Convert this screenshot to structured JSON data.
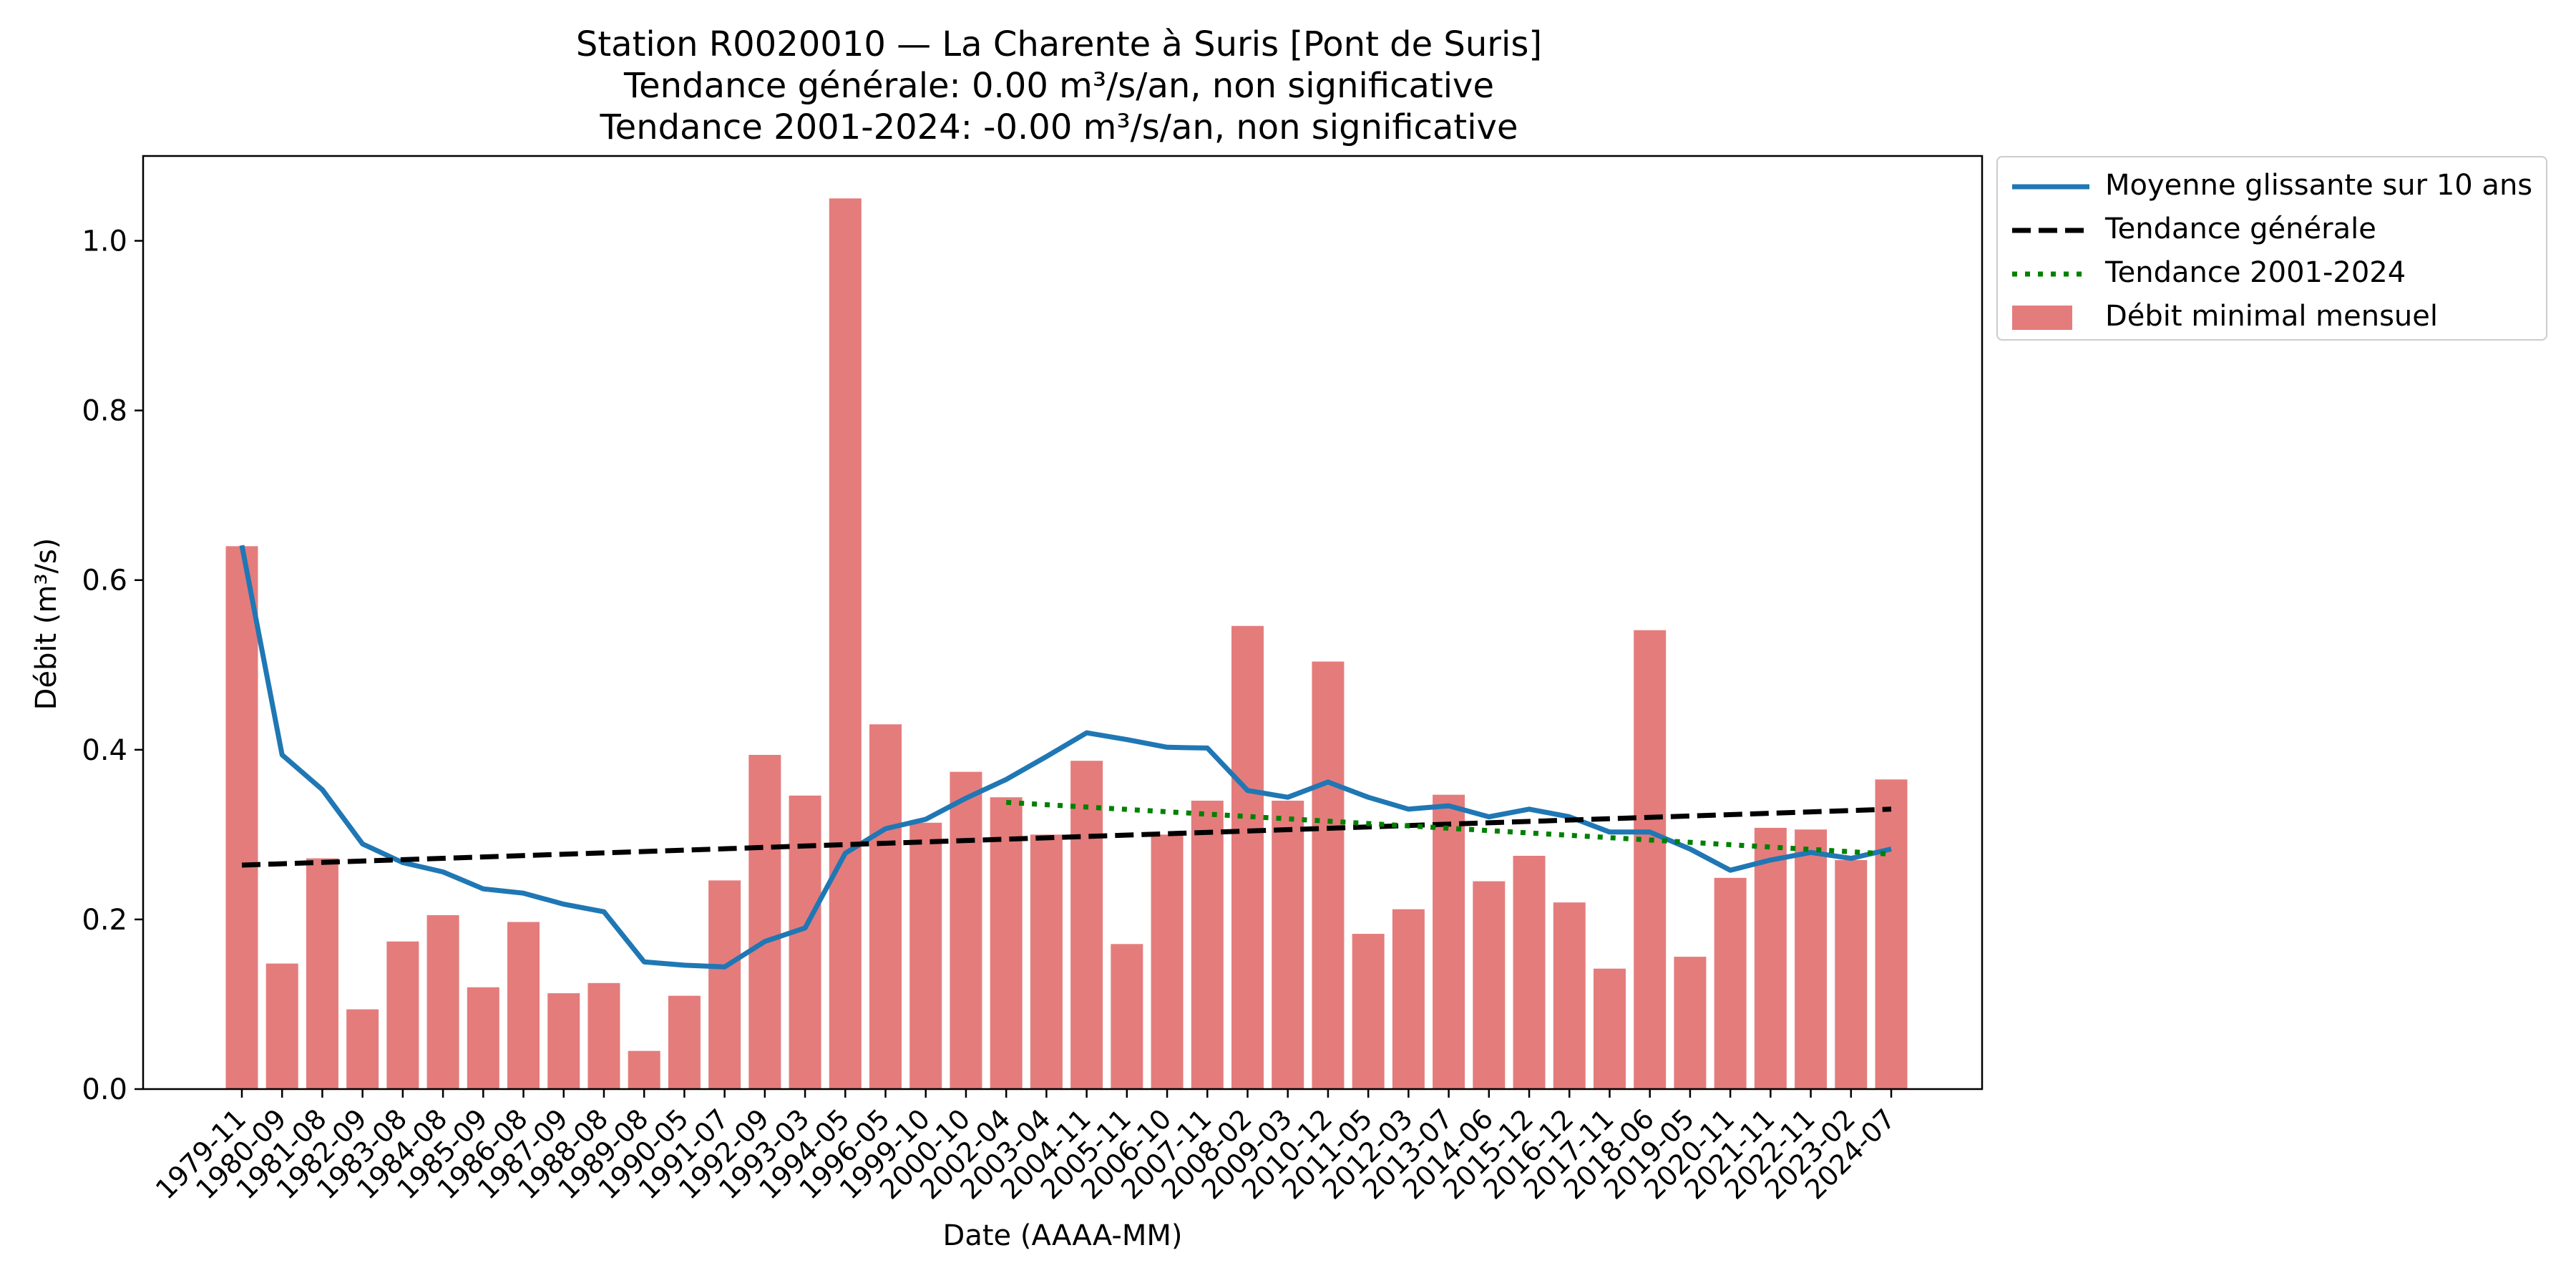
{
  "chart_data": {
    "type": "bar",
    "title": "Station R0020010 — La Charente à Suris [Pont de Suris]",
    "subtitle_lines": [
      "Tendance générale: 0.00 m³/s/an, non significative",
      "Tendance 2001-2024: -0.00 m³/s/an, non significative"
    ],
    "xlabel": "Date (AAAA-MM)",
    "ylabel": "Débit (m³/s)",
    "ylim": [
      0,
      1.1
    ],
    "yticks": [
      0.0,
      0.2,
      0.4,
      0.6,
      0.8,
      1.0
    ],
    "ytick_labels": [
      "0.0",
      "0.2",
      "0.4",
      "0.6",
      "0.8",
      "1.0"
    ],
    "grid": false,
    "legend_position": "outside-top-right",
    "categories": [
      "1979-11",
      "1980-09",
      "1981-08",
      "1982-09",
      "1983-08",
      "1984-08",
      "1985-09",
      "1986-08",
      "1987-09",
      "1988-08",
      "1989-08",
      "1990-05",
      "1991-07",
      "1992-09",
      "1993-03",
      "1994-05",
      "1996-05",
      "1999-10",
      "2000-10",
      "2002-04",
      "2003-04",
      "2004-11",
      "2005-11",
      "2006-10",
      "2007-11",
      "2008-02",
      "2009-03",
      "2010-12",
      "2011-05",
      "2012-03",
      "2013-07",
      "2014-06",
      "2015-12",
      "2016-12",
      "2017-11",
      "2018-06",
      "2019-05",
      "2020-11",
      "2021-11",
      "2022-11",
      "2023-02",
      "2024-07"
    ],
    "series": [
      {
        "name": "Débit minimal mensuel",
        "kind": "bar",
        "color": "#e47c7c",
        "values": [
          0.64,
          0.148,
          0.272,
          0.094,
          0.174,
          0.205,
          0.12,
          0.197,
          0.113,
          0.125,
          0.045,
          0.11,
          0.246,
          0.394,
          0.346,
          1.05,
          0.43,
          0.314,
          0.374,
          0.344,
          0.3,
          0.387,
          0.171,
          0.3,
          0.34,
          0.546,
          0.34,
          0.504,
          0.183,
          0.212,
          0.347,
          0.245,
          0.275,
          0.22,
          0.142,
          0.541,
          0.156,
          0.249,
          0.308,
          0.306,
          0.27,
          0.365
        ]
      },
      {
        "name": "Moyenne glissante sur 10 ans",
        "kind": "line",
        "color": "#1f77b4",
        "values": [
          0.641,
          0.394,
          0.353,
          0.289,
          0.267,
          0.256,
          0.236,
          0.231,
          0.218,
          0.209,
          0.15,
          0.146,
          0.144,
          0.174,
          0.19,
          0.278,
          0.307,
          0.318,
          0.343,
          0.365,
          0.392,
          0.42,
          0.412,
          0.403,
          0.402,
          0.352,
          0.344,
          0.362,
          0.344,
          0.33,
          0.334,
          0.321,
          0.33,
          0.321,
          0.303,
          0.303,
          0.283,
          0.258,
          0.27,
          0.279,
          0.272,
          0.283
        ]
      },
      {
        "name": "Tendance générale",
        "kind": "line-dashed",
        "color": "#000000",
        "x_start": "1979-11",
        "x_end": "2024-07",
        "y_start": 0.264,
        "y_end": 0.33
      },
      {
        "name": "Tendance 2001-2024",
        "kind": "line-dotted",
        "color": "#008000",
        "x_start": "2002-04",
        "x_end": "2024-07",
        "y_start": 0.338,
        "y_end": 0.277
      }
    ]
  }
}
